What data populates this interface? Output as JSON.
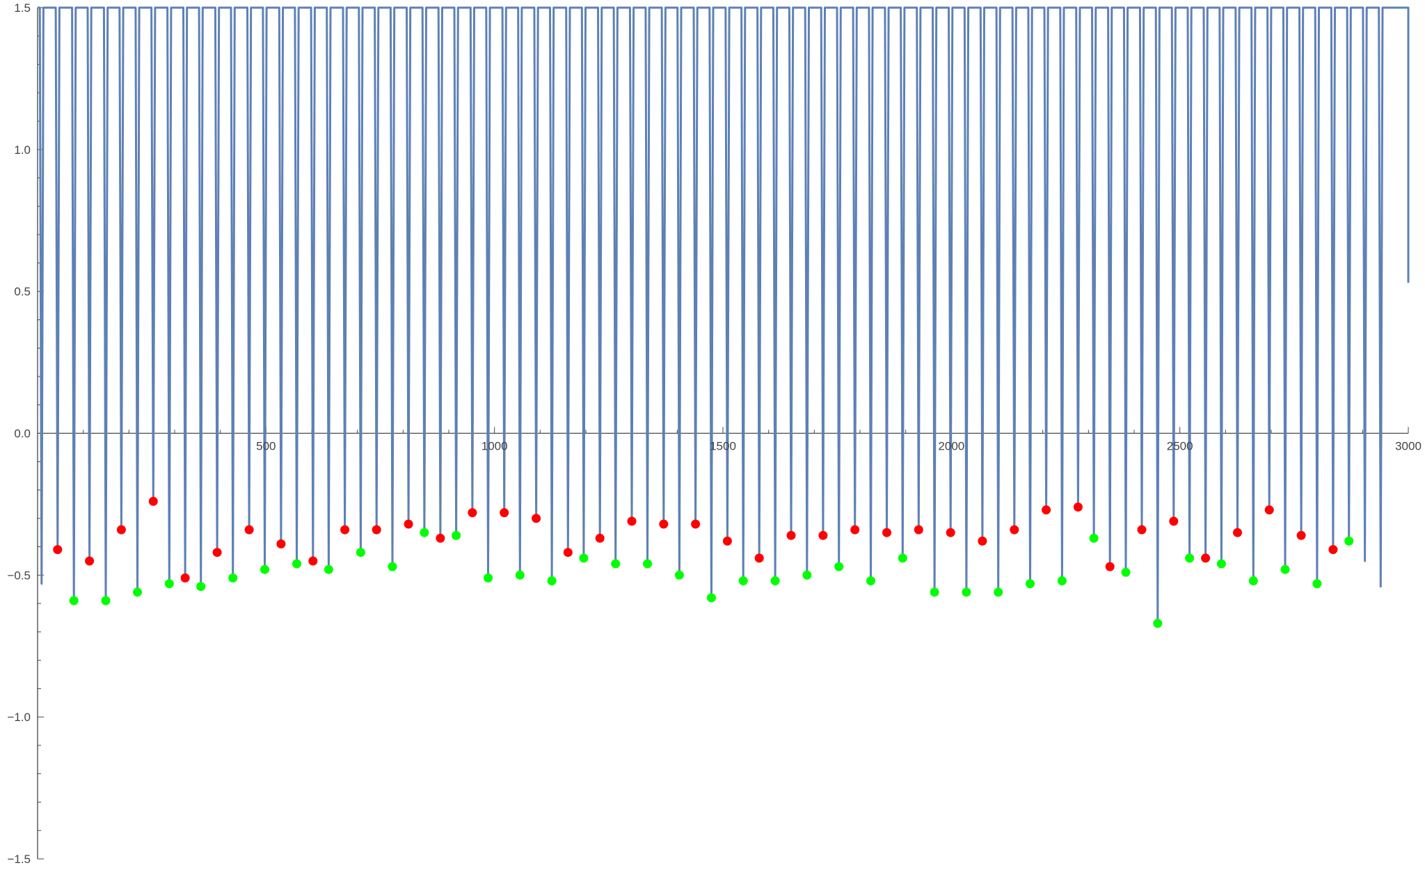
{
  "chart_data": {
    "type": "line",
    "title": "",
    "xlabel": "",
    "ylabel": "",
    "xlim": [
      0,
      3000
    ],
    "ylim": [
      -1.5,
      1.5
    ],
    "x_ticks": [
      {
        "value": 500,
        "label": "500"
      },
      {
        "value": 1000,
        "label": "1000"
      },
      {
        "value": 1500,
        "label": "1500"
      },
      {
        "value": 2000,
        "label": "2000"
      },
      {
        "value": 2500,
        "label": "2500"
      },
      {
        "value": 3000,
        "label": "3000"
      }
    ],
    "y_ticks": [
      {
        "value": 1.5,
        "label": "1.5"
      },
      {
        "value": 1.0,
        "label": "1.0"
      },
      {
        "value": 0.5,
        "label": "0.5"
      },
      {
        "value": 0.0,
        "label": "0.0"
      },
      {
        "value": -0.5,
        "label": "-0.5"
      },
      {
        "value": -1.0,
        "label": "-1.0"
      },
      {
        "value": -1.5,
        "label": "-1.5"
      }
    ],
    "grid": false,
    "legend": "none",
    "colors": {
      "curve": "#5e81b5",
      "red_points": "#ff0000",
      "green_points": "#00ff00",
      "axis": "#444444"
    },
    "curve_start": {
      "x": 0,
      "y": 1.5
    },
    "curve_end": {
      "x": 3000,
      "y": 0.53
    },
    "series": [
      {
        "dips": [
          [
            8.8,
            -0.53
          ],
          [
            43.8,
            -0.41
          ],
          [
            79.5,
            -0.59
          ],
          [
            113.6,
            -0.45
          ],
          [
            149.3,
            -0.59
          ],
          [
            183.4,
            -0.34
          ],
          [
            218.5,
            -0.56
          ],
          [
            253.2,
            -0.24
          ],
          [
            288.2,
            -0.53
          ],
          [
            323.0,
            -0.51
          ],
          [
            357.4,
            -0.54
          ],
          [
            393.0,
            -0.42
          ],
          [
            427.4,
            -0.51
          ],
          [
            463.1,
            -0.34
          ],
          [
            497.2,
            -0.48
          ],
          [
            532.9,
            -0.39
          ],
          [
            567.3,
            -0.46
          ],
          [
            602.7,
            -0.45
          ],
          [
            637.1,
            -0.48
          ],
          [
            672.5,
            -0.34
          ],
          [
            707.2,
            -0.42
          ],
          [
            741.9,
            -0.34
          ],
          [
            776.7,
            -0.47
          ],
          [
            811.8,
            -0.32
          ],
          [
            846.5,
            -0.35
          ],
          [
            881.5,
            -0.37
          ],
          [
            916.2,
            -0.36
          ],
          [
            951.6,
            -0.28
          ],
          [
            986.0,
            -0.51
          ],
          [
            1021.4,
            -0.28
          ],
          [
            1055.8,
            -0.5
          ],
          [
            1091.2,
            -0.3
          ],
          [
            1125.5,
            -0.52
          ],
          [
            1160.9,
            -0.42
          ],
          [
            1195.3,
            -0.44
          ],
          [
            1230.7,
            -0.37
          ],
          [
            1265.1,
            -0.46
          ],
          [
            1300.5,
            -0.31
          ],
          [
            1334.8,
            -0.46
          ],
          [
            1370.2,
            -0.32
          ],
          [
            1404.6,
            -0.5
          ],
          [
            1440.0,
            -0.32
          ],
          [
            1474.7,
            -0.58
          ],
          [
            1509.8,
            -0.38
          ],
          [
            1544.5,
            -0.52
          ],
          [
            1579.5,
            -0.44
          ],
          [
            1614.3,
            -0.52
          ],
          [
            1649.3,
            -0.36
          ],
          [
            1684.0,
            -0.5
          ],
          [
            1719.1,
            -0.36
          ],
          [
            1753.8,
            -0.47
          ],
          [
            1788.9,
            -0.34
          ],
          [
            1823.6,
            -0.52
          ],
          [
            1858.6,
            -0.35
          ],
          [
            1893.3,
            -0.44
          ],
          [
            1928.4,
            -0.34
          ],
          [
            1963.1,
            -0.56
          ],
          [
            1998.2,
            -0.35
          ],
          [
            2032.9,
            -0.56
          ],
          [
            2067.9,
            -0.38
          ],
          [
            2102.6,
            -0.56
          ],
          [
            2137.7,
            -0.34
          ],
          [
            2172.4,
            -0.53
          ],
          [
            2207.5,
            -0.27
          ],
          [
            2242.2,
            -0.52
          ],
          [
            2277.2,
            -0.26
          ],
          [
            2311.9,
            -0.37
          ],
          [
            2347.0,
            -0.47
          ],
          [
            2381.7,
            -0.49
          ],
          [
            2416.8,
            -0.34
          ],
          [
            2451.5,
            -0.67
          ],
          [
            2486.5,
            -0.31
          ],
          [
            2521.2,
            -0.44
          ],
          [
            2556.3,
            -0.44
          ],
          [
            2591.0,
            -0.46
          ],
          [
            2626.1,
            -0.35
          ],
          [
            2660.8,
            -0.52
          ],
          [
            2695.8,
            -0.27
          ],
          [
            2730.5,
            -0.48
          ],
          [
            2765.6,
            -0.36
          ],
          [
            2800.3,
            -0.53
          ],
          [
            2835.4,
            -0.41
          ],
          [
            2870.1,
            -0.38
          ],
          [
            2904.9,
            -0.45
          ],
          [
            2939.6,
            -0.54
          ]
        ]
      },
      {
        "name": "",
        "type": "scatter",
        "color": "#ff0000",
        "points": [
          [
            43.8,
            -0.41
          ],
          [
            113.6,
            -0.45
          ],
          [
            183.4,
            -0.34
          ],
          [
            253.2,
            -0.24
          ],
          [
            323.0,
            -0.51
          ],
          [
            393.0,
            -0.42
          ],
          [
            463.1,
            -0.34
          ],
          [
            532.9,
            -0.39
          ],
          [
            602.7,
            -0.45
          ],
          [
            672.5,
            -0.34
          ],
          [
            741.9,
            -0.34
          ],
          [
            811.8,
            -0.32
          ],
          [
            881.5,
            -0.37
          ],
          [
            951.6,
            -0.28
          ],
          [
            1021.4,
            -0.28
          ],
          [
            1091.2,
            -0.3
          ],
          [
            1160.9,
            -0.42
          ],
          [
            1230.7,
            -0.37
          ],
          [
            1300.5,
            -0.31
          ],
          [
            1370.2,
            -0.32
          ],
          [
            1440.0,
            -0.32
          ],
          [
            1509.8,
            -0.38
          ],
          [
            1579.5,
            -0.44
          ],
          [
            1649.3,
            -0.36
          ],
          [
            1719.1,
            -0.36
          ],
          [
            1788.9,
            -0.34
          ],
          [
            1858.6,
            -0.35
          ],
          [
            1928.4,
            -0.34
          ],
          [
            1998.2,
            -0.35
          ],
          [
            2067.9,
            -0.38
          ],
          [
            2137.7,
            -0.34
          ],
          [
            2207.5,
            -0.27
          ],
          [
            2277.2,
            -0.26
          ],
          [
            2347.0,
            -0.47
          ],
          [
            2416.8,
            -0.34
          ],
          [
            2486.5,
            -0.31
          ],
          [
            2556.3,
            -0.44
          ],
          [
            2626.1,
            -0.35
          ],
          [
            2695.8,
            -0.27
          ],
          [
            2765.6,
            -0.36
          ],
          [
            2835.4,
            -0.41
          ]
        ]
      },
      {
        "name": "",
        "type": "scatter",
        "color": "#00ff00",
        "points": [
          [
            79.5,
            -0.59
          ],
          [
            149.3,
            -0.59
          ],
          [
            218.5,
            -0.56
          ],
          [
            288.2,
            -0.53
          ],
          [
            357.4,
            -0.54
          ],
          [
            427.4,
            -0.51
          ],
          [
            497.2,
            -0.48
          ],
          [
            567.3,
            -0.46
          ],
          [
            637.1,
            -0.48
          ],
          [
            707.2,
            -0.42
          ],
          [
            776.7,
            -0.47
          ],
          [
            846.5,
            -0.35
          ],
          [
            916.2,
            -0.36
          ],
          [
            986.0,
            -0.51
          ],
          [
            1055.8,
            -0.5
          ],
          [
            1125.5,
            -0.52
          ],
          [
            1195.3,
            -0.44
          ],
          [
            1265.1,
            -0.46
          ],
          [
            1334.8,
            -0.46
          ],
          [
            1404.6,
            -0.5
          ],
          [
            1474.7,
            -0.58
          ],
          [
            1544.5,
            -0.52
          ],
          [
            1614.3,
            -0.52
          ],
          [
            1684.0,
            -0.5
          ],
          [
            1753.8,
            -0.47
          ],
          [
            1823.6,
            -0.52
          ],
          [
            1893.3,
            -0.44
          ],
          [
            1963.1,
            -0.56
          ],
          [
            2032.9,
            -0.56
          ],
          [
            2102.6,
            -0.56
          ],
          [
            2172.4,
            -0.53
          ],
          [
            2242.2,
            -0.52
          ],
          [
            2311.9,
            -0.37
          ],
          [
            2381.7,
            -0.49
          ],
          [
            2451.5,
            -0.67
          ],
          [
            2521.2,
            -0.44
          ],
          [
            2591.0,
            -0.46
          ],
          [
            2660.8,
            -0.52
          ],
          [
            2730.5,
            -0.48
          ],
          [
            2800.3,
            -0.53
          ],
          [
            2870.1,
            -0.38
          ]
        ]
      }
    ]
  }
}
